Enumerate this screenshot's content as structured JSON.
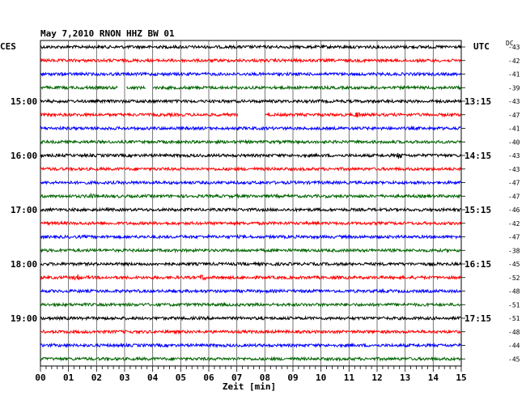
{
  "header": {
    "title": "May 7,2010   RNON HHZ BW 01",
    "left_tz": "CES",
    "right_tz": "UTC",
    "dc_label": "DC"
  },
  "chart_data": {
    "type": "line",
    "title": "May 7,2010   RNON HHZ BW 01",
    "xlabel": "Zeit [min]",
    "xlim": [
      0,
      15
    ],
    "x_ticks": [
      "00",
      "01",
      "02",
      "03",
      "04",
      "05",
      "06",
      "07",
      "08",
      "09",
      "10",
      "11",
      "12",
      "13",
      "14",
      "15"
    ],
    "grid": true,
    "left_time_labels": [
      {
        "row": 4,
        "label": "15:00"
      },
      {
        "row": 8,
        "label": "16:00"
      },
      {
        "row": 12,
        "label": "17:00"
      },
      {
        "row": 16,
        "label": "18:00"
      },
      {
        "row": 20,
        "label": "19:00"
      }
    ],
    "right_time_labels": [
      {
        "row": 4,
        "label": "13:15"
      },
      {
        "row": 8,
        "label": "14:15"
      },
      {
        "row": 12,
        "label": "15:15"
      },
      {
        "row": 16,
        "label": "16:15"
      },
      {
        "row": 20,
        "label": "17:15"
      }
    ],
    "trace_colors": [
      "#000000",
      "#ff0000",
      "#0000ff",
      "#006400"
    ],
    "dc_offsets": [
      -43,
      -42,
      -41,
      -39,
      -43,
      -47,
      -41,
      -40,
      -43,
      -43,
      -47,
      -47,
      -46,
      -42,
      -47,
      -38,
      -45,
      -52,
      -48,
      -51,
      -51,
      -48,
      -44,
      -45
    ],
    "gaps": [
      {
        "row": 3,
        "start_min": 2.75,
        "end_min": 3.05
      },
      {
        "row": 3,
        "start_min": 3.75,
        "end_min": 4.0
      },
      {
        "row": 5,
        "start_min": 7.05,
        "end_min": 8.0
      }
    ],
    "events": [
      {
        "row": 3,
        "at_min": 2.85
      },
      {
        "row": 5,
        "at_min": 11.3
      },
      {
        "row": 8,
        "at_min": 12.8
      },
      {
        "row": 11,
        "at_min": 1.8
      },
      {
        "row": 17,
        "at_min": 1.3
      },
      {
        "row": 17,
        "at_min": 5.8
      }
    ]
  }
}
